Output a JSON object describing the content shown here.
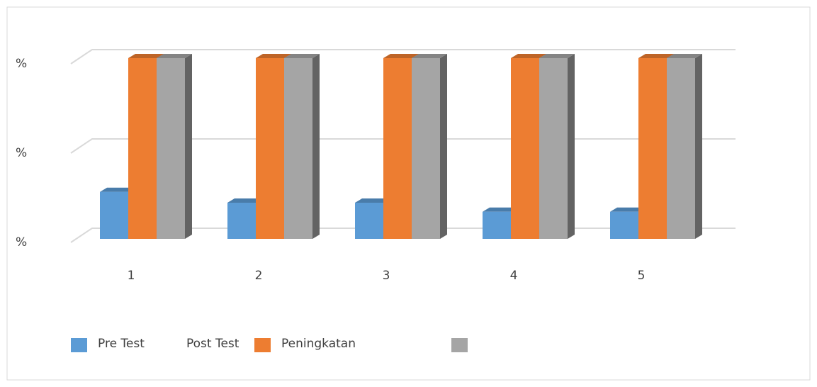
{
  "chart_data": {
    "type": "bar3d",
    "categories": [
      "1",
      "2",
      "3",
      "4",
      "5"
    ],
    "series": [
      {
        "name": "Pre Test",
        "color": "#5b9bd5",
        "values": [
          26,
          20,
          20,
          15,
          15
        ]
      },
      {
        "name": "Post Test",
        "color": "#ed7d31",
        "values": [
          100,
          100,
          100,
          100,
          100
        ]
      },
      {
        "name": "Peningkatan",
        "color": "#a5a5a5",
        "values": [
          100,
          100,
          100,
          100,
          100
        ]
      }
    ],
    "ylim": [
      0,
      100
    ],
    "yticks": [
      {
        "value": 0,
        "label": "%"
      },
      {
        "value": 50,
        "label": "%"
      },
      {
        "value": 100,
        "label": "%"
      }
    ],
    "grid": true
  }
}
